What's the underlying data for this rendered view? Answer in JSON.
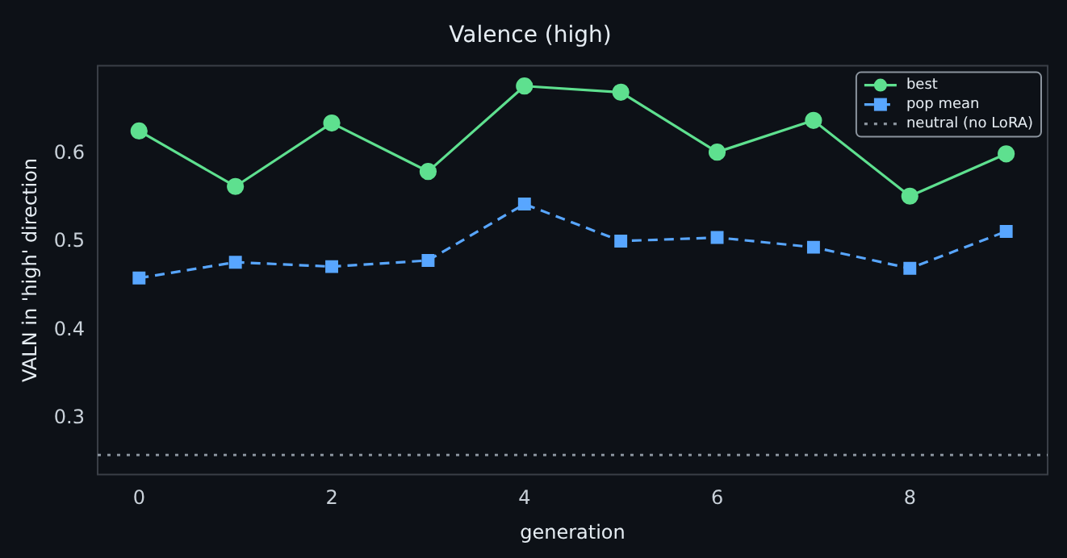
{
  "chart_data": {
    "type": "line",
    "title": "Valence (high)",
    "xlabel": "generation",
    "ylabel": "VALN in 'high' direction",
    "x": [
      0,
      1,
      2,
      3,
      4,
      5,
      6,
      7,
      8,
      9
    ],
    "series": [
      {
        "name": "best",
        "color": "#5ee08f",
        "marker": "circle",
        "line_style": "solid",
        "values": [
          0.626,
          0.563,
          0.635,
          0.58,
          0.677,
          0.67,
          0.602,
          0.638,
          0.552,
          0.6
        ]
      },
      {
        "name": "pop mean",
        "color": "#58a6ff",
        "marker": "square",
        "line_style": "dashed",
        "values": [
          0.459,
          0.477,
          0.472,
          0.479,
          0.543,
          0.501,
          0.505,
          0.494,
          0.47,
          0.512
        ]
      }
    ],
    "ref_lines": [
      {
        "axis": "y",
        "value": 0.258,
        "label": "neutral (no LoRA)",
        "color": "#8b949e",
        "line_style": "dotted"
      }
    ],
    "xlim": [
      -0.43,
      9.43
    ],
    "xticks": [
      0,
      2,
      4,
      6,
      8
    ],
    "ylim": [
      0.236,
      0.7
    ],
    "yticks": [
      0.3,
      0.4,
      0.5,
      0.6
    ],
    "grid": false,
    "legend": "top right"
  }
}
